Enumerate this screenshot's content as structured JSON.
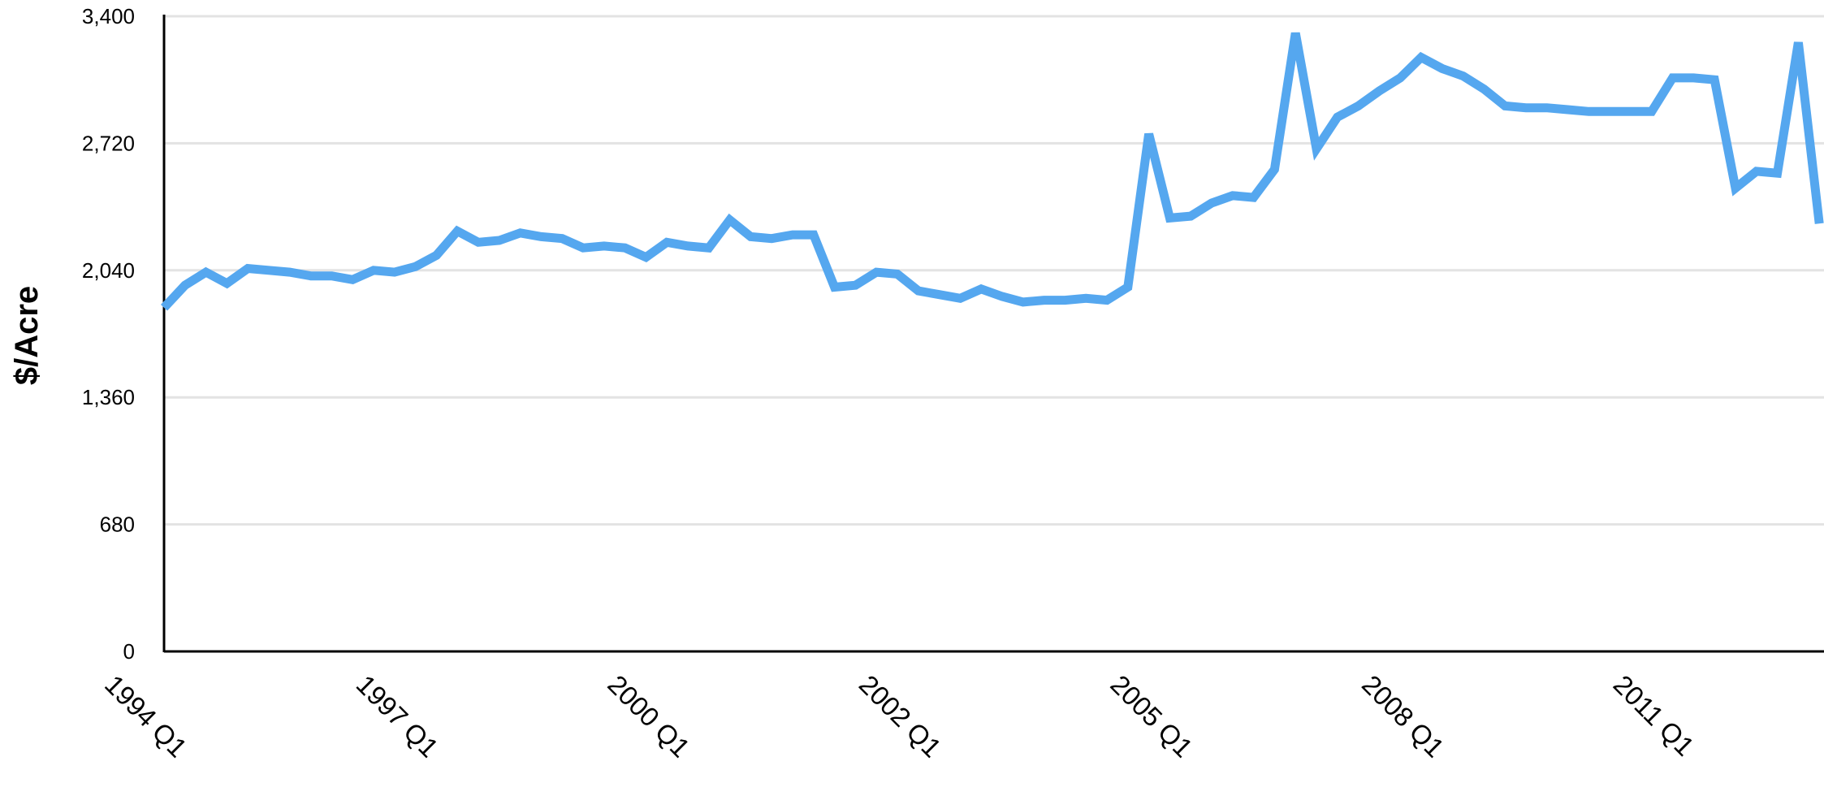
{
  "chart_data": {
    "type": "line",
    "title": "",
    "xlabel": "",
    "ylabel": "$/Acre",
    "ylim": [
      0,
      3400
    ],
    "yticks": [
      0,
      680,
      1360,
      2040,
      2720,
      3400
    ],
    "ytick_labels": [
      "0",
      "680",
      "1,360",
      "2,040",
      "2,720",
      "3,400"
    ],
    "grid": true,
    "legend": "none",
    "line_color": "#55a7ef",
    "x_tick_labels": [
      {
        "index": 0,
        "label": "1994 Q1"
      },
      {
        "index": 12,
        "label": "1997 Q1"
      },
      {
        "index": 24,
        "label": "2000 Q1"
      },
      {
        "index": 36,
        "label": "2002 Q1"
      },
      {
        "index": 48,
        "label": "2005 Q1"
      },
      {
        "index": 60,
        "label": "2008 Q1"
      },
      {
        "index": 72,
        "label": "2011 Q1"
      }
    ],
    "series": [
      {
        "values": [
          1840,
          1960,
          2030,
          1970,
          2050,
          2040,
          2030,
          2010,
          2010,
          1990,
          2040,
          2030,
          2060,
          2120,
          2250,
          2190,
          2200,
          2240,
          2220,
          2210,
          2160,
          2170,
          2160,
          2110,
          2190,
          2170,
          2160,
          2310,
          2220,
          2210,
          2230,
          2230,
          1950,
          1960,
          2030,
          2020,
          1930,
          1910,
          1890,
          1940,
          1900,
          1870,
          1880,
          1880,
          1890,
          1880,
          1950,
          2770,
          2320,
          2330,
          2400,
          2440,
          2430,
          2580,
          3310,
          2690,
          2860,
          2920,
          3000,
          3070,
          3180,
          3120,
          3080,
          3010,
          2920,
          2910,
          2910,
          2900,
          2890,
          2890,
          2890,
          2890,
          3070,
          3070,
          3060,
          2480,
          2570,
          2560,
          3260,
          2290
        ]
      }
    ]
  }
}
